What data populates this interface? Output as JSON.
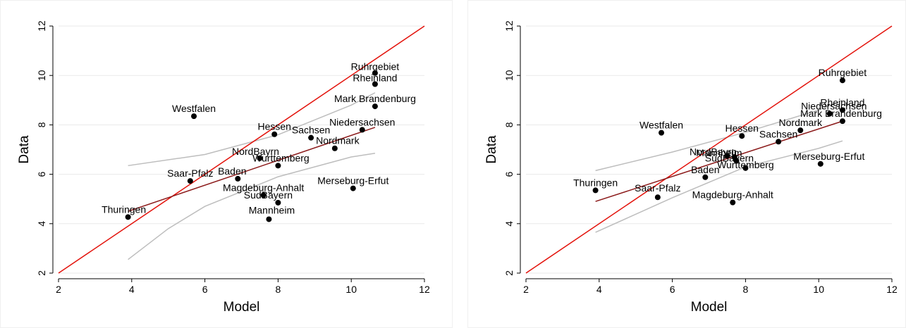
{
  "colors": {
    "identity_line": "#e3120b",
    "fit_line": "#8b1a1a",
    "ci_band": "#bdbdbd",
    "points": "#000000",
    "grid": "#eaeaea",
    "axis": "#000000"
  },
  "chart_data": [
    {
      "type": "scatter",
      "xlabel": "Model",
      "ylabel": "Data",
      "xlim": [
        2,
        12
      ],
      "ylim": [
        2,
        12
      ],
      "xticks": [
        "2",
        "4",
        "6",
        "8",
        "10",
        "12"
      ],
      "yticks": [
        "2",
        "4",
        "6",
        "8",
        "10",
        "12"
      ],
      "grid": true,
      "identity_line": [
        [
          2,
          2
        ],
        [
          12,
          12
        ]
      ],
      "fit_line": [
        [
          3.9,
          4.5
        ],
        [
          10.65,
          7.9
        ]
      ],
      "ci_upper": [
        [
          3.9,
          6.35
        ],
        [
          6,
          6.8
        ],
        [
          8,
          7.6
        ],
        [
          10,
          8.8
        ],
        [
          10.65,
          9.3
        ]
      ],
      "ci_lower": [
        [
          3.9,
          2.55
        ],
        [
          5,
          3.8
        ],
        [
          6,
          4.7
        ],
        [
          8,
          5.9
        ],
        [
          10,
          6.7
        ],
        [
          10.65,
          6.85
        ]
      ],
      "points": [
        {
          "label": "Ruhrgebiet",
          "x": 10.65,
          "y": 10.1
        },
        {
          "label": "Rheinland",
          "x": 10.65,
          "y": 9.65
        },
        {
          "label": "Mark Brandenburg",
          "x": 10.65,
          "y": 8.75
        },
        {
          "label": "Westfalen",
          "x": 5.7,
          "y": 8.35
        },
        {
          "label": "Niedersachsen",
          "x": 10.3,
          "y": 7.8
        },
        {
          "label": "Hessen",
          "x": 7.9,
          "y": 7.62
        },
        {
          "label": "Sachsen",
          "x": 8.9,
          "y": 7.48
        },
        {
          "label": "Nordmark",
          "x": 9.55,
          "y": 7.05
        },
        {
          "label": "NordBayrn",
          "x": 7.5,
          "y": 6.65
        },
        {
          "label": "Wurttemberg",
          "x": 8.0,
          "y": 6.35
        },
        {
          "label": "Baden",
          "x": 6.9,
          "y": 5.82
        },
        {
          "label": "Saar-Pfalz",
          "x": 5.6,
          "y": 5.73
        },
        {
          "label": "Merseburg-Erfut",
          "x": 10.05,
          "y": 5.43
        },
        {
          "label": "Magdeburg-Anhalt",
          "x": 7.6,
          "y": 5.15
        },
        {
          "label": "SudBayern",
          "x": 8.0,
          "y": 4.85
        },
        {
          "label": "Thuringen",
          "x": 3.9,
          "y": 4.27
        },
        {
          "label": "Mannheim",
          "x": 7.75,
          "y": 4.18
        }
      ]
    },
    {
      "type": "scatter",
      "xlabel": "Model",
      "ylabel": "Data",
      "xlim": [
        2,
        12
      ],
      "ylim": [
        2,
        12
      ],
      "xticks": [
        "2",
        "4",
        "6",
        "8",
        "10",
        "12"
      ],
      "yticks": [
        "2",
        "4",
        "6",
        "8",
        "10",
        "12"
      ],
      "grid": true,
      "identity_line": [
        [
          2,
          2
        ],
        [
          12,
          12
        ]
      ],
      "fit_line": [
        [
          3.9,
          4.9
        ],
        [
          10.65,
          8.15
        ]
      ],
      "ci_upper": [
        [
          3.9,
          6.15
        ],
        [
          6,
          6.9
        ],
        [
          8,
          7.7
        ],
        [
          10,
          8.6
        ],
        [
          10.65,
          9.0
        ]
      ],
      "ci_lower": [
        [
          3.9,
          3.65
        ],
        [
          6,
          5.05
        ],
        [
          8,
          6.3
        ],
        [
          10,
          7.05
        ],
        [
          10.65,
          7.35
        ]
      ],
      "points": [
        {
          "label": "Ruhrgebiet",
          "x": 10.65,
          "y": 9.8
        },
        {
          "label": "Rheinland",
          "x": 10.65,
          "y": 8.6
        },
        {
          "label": "Niedersachsen",
          "x": 10.3,
          "y": 8.45
        },
        {
          "label": "Mark Brandenburg",
          "x": 10.65,
          "y": 8.15
        },
        {
          "label": "Nordmark",
          "x": 9.5,
          "y": 7.78
        },
        {
          "label": "Westfalen",
          "x": 5.7,
          "y": 7.68
        },
        {
          "label": "Hessen",
          "x": 7.9,
          "y": 7.55
        },
        {
          "label": "Sachsen",
          "x": 8.9,
          "y": 7.32
        },
        {
          "label": "NordBayrn",
          "x": 7.5,
          "y": 6.75
        },
        {
          "label": "Mannheim",
          "x": 7.7,
          "y": 6.7
        },
        {
          "label": "SudBayern",
          "x": 7.75,
          "y": 6.55
        },
        {
          "label": "Wurttemberg",
          "x": 8.0,
          "y": 6.25
        },
        {
          "label": "Merseburg-Erfut",
          "x": 10.05,
          "y": 6.42
        },
        {
          "label": "Baden",
          "x": 6.9,
          "y": 5.88
        },
        {
          "label": "Thuringen",
          "x": 3.9,
          "y": 5.35
        },
        {
          "label": "Saar-Pfalz",
          "x": 5.6,
          "y": 5.07
        },
        {
          "label": "Magdeburg-Anhalt",
          "x": 7.65,
          "y": 4.86
        }
      ]
    }
  ]
}
